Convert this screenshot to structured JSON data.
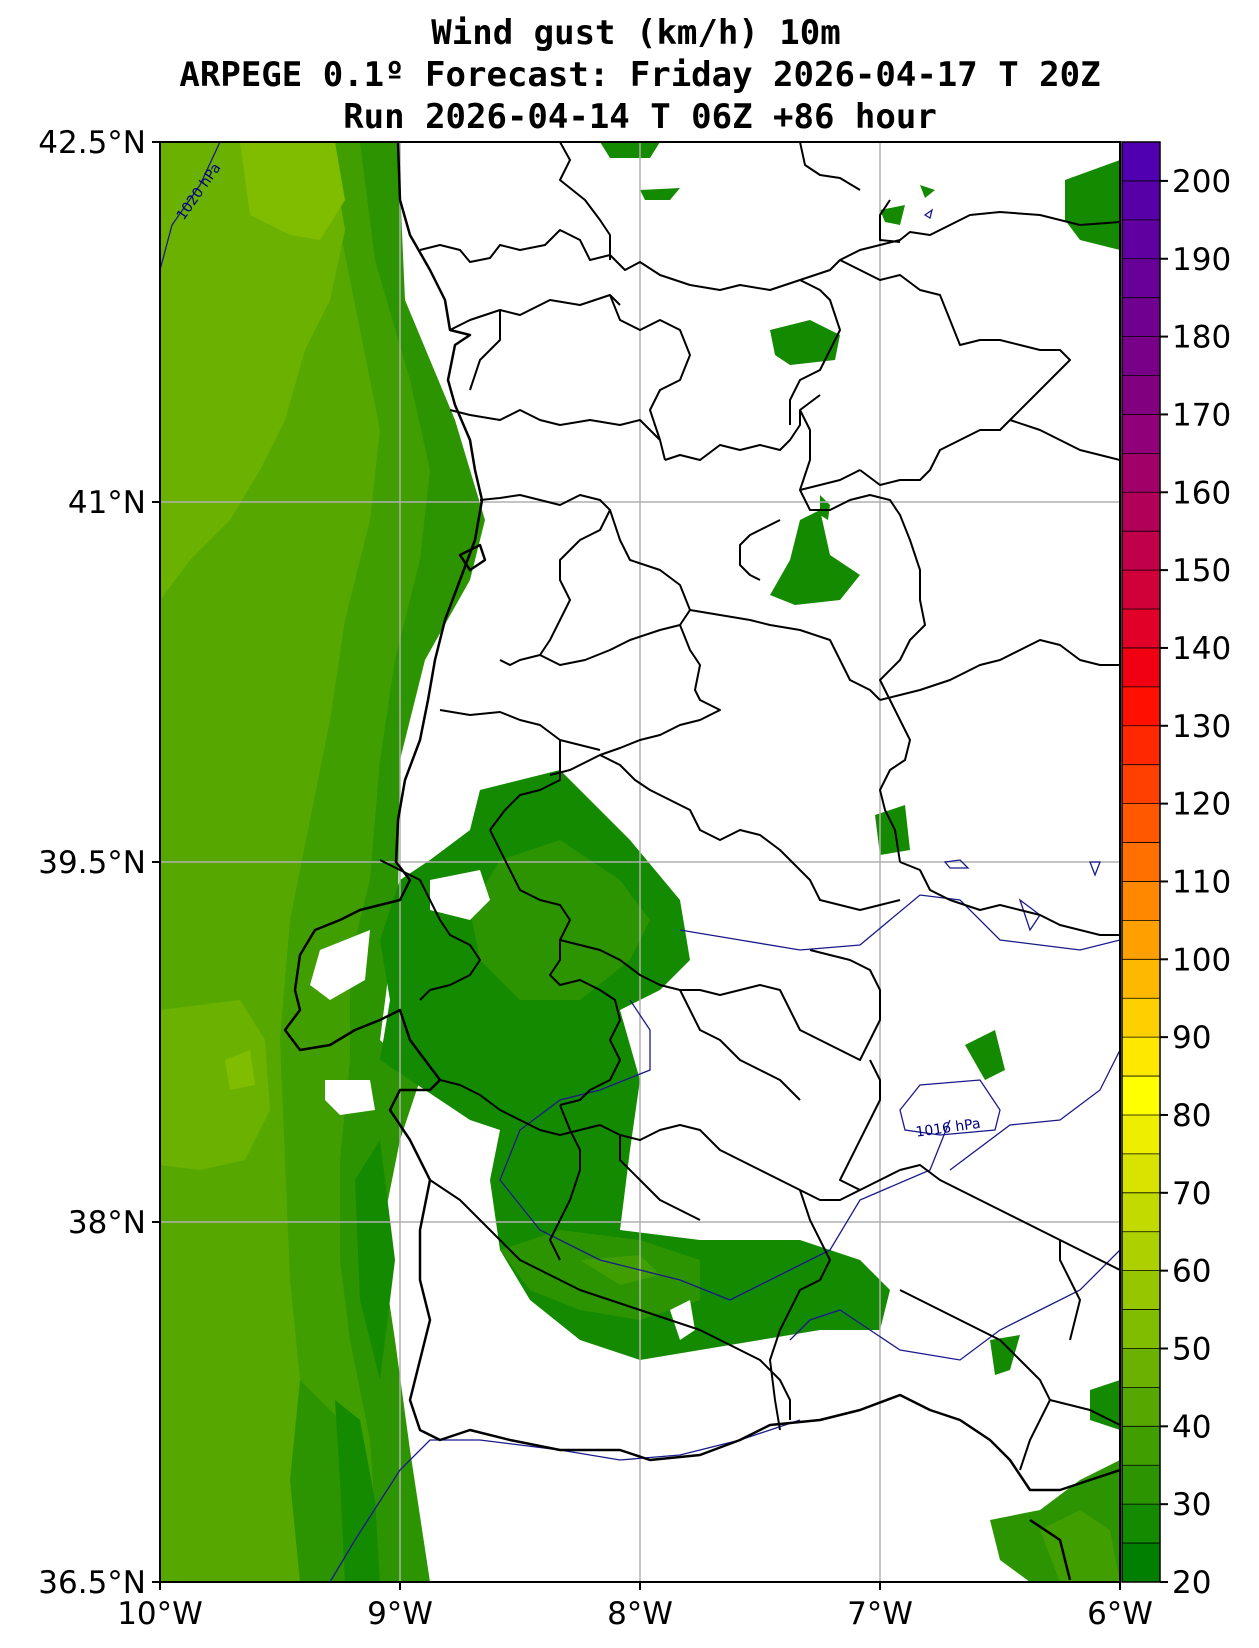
{
  "title": {
    "line1": "Wind gust (km/h) 10m",
    "line2": "ARPEGE 0.1º Forecast: Friday 2026-04-17 T 20Z",
    "line3": "Run 2026-04-14 T 06Z +86 hour"
  },
  "map": {
    "lon_range": [
      -10,
      -6
    ],
    "lat_range": [
      36.5,
      42.5
    ],
    "x_ticks": [
      {
        "value": -10,
        "label": "10°W"
      },
      {
        "value": -9,
        "label": "9°W"
      },
      {
        "value": -8,
        "label": "8°W"
      },
      {
        "value": -7,
        "label": "7°W"
      },
      {
        "value": -6,
        "label": "6°W"
      }
    ],
    "y_ticks": [
      {
        "value": 42.5,
        "label": "42.5°N"
      },
      {
        "value": 41,
        "label": "41°N"
      },
      {
        "value": 39.5,
        "label": "39.5°N"
      },
      {
        "value": 38,
        "label": "38°N"
      },
      {
        "value": 36.5,
        "label": "36.5°N"
      }
    ],
    "grid": true,
    "isobars": [
      {
        "label": "1020 hPa"
      },
      {
        "label": "1016 hPa"
      }
    ]
  },
  "colorbar": {
    "min": 20,
    "max": 205,
    "step": 5,
    "labels": [
      "20",
      "30",
      "40",
      "50",
      "60",
      "70",
      "80",
      "90",
      "100",
      "110",
      "120",
      "130",
      "140",
      "150",
      "160",
      "170",
      "180",
      "190",
      "200"
    ],
    "colors": [
      "#007f00",
      "#148a00",
      "#2b9400",
      "#409e00",
      "#56a800",
      "#6bb200",
      "#80bc00",
      "#96c600",
      "#acd000",
      "#c2da00",
      "#d8e400",
      "#eeee00",
      "#ffff00",
      "#ffe800",
      "#ffd000",
      "#ffb800",
      "#ffa000",
      "#ff8800",
      "#ff7000",
      "#ff5800",
      "#ff4000",
      "#ff2800",
      "#ff1000",
      "#f00010",
      "#e00028",
      "#d00038",
      "#c00048",
      "#b00058",
      "#a00068",
      "#900078",
      "#800080",
      "#780088",
      "#700090",
      "#680098",
      "#6000a0",
      "#5800a8",
      "#5000b0"
    ]
  }
}
